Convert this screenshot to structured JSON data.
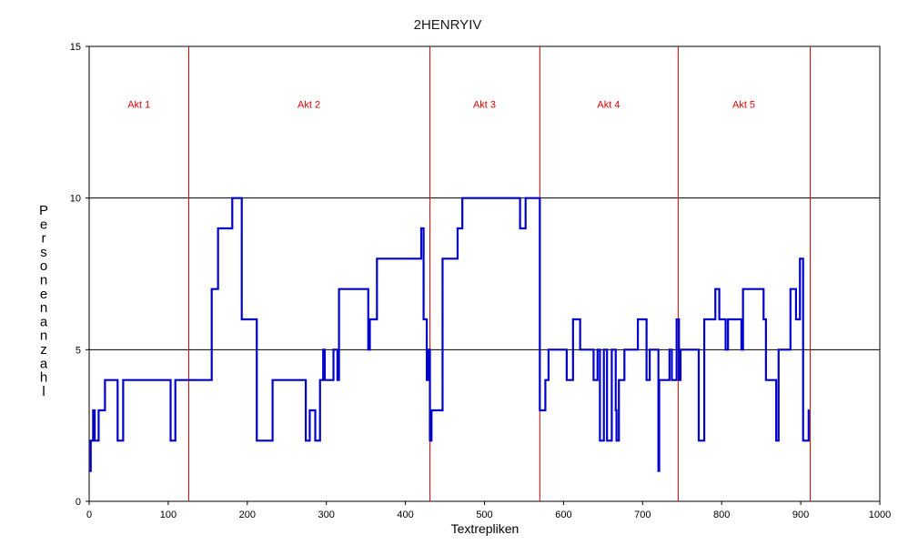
{
  "chart_data": {
    "type": "line",
    "title": "2HENRYIV",
    "xlabel": "Textrepliken",
    "ylabel": "Personenanzahl",
    "xlim": [
      0,
      1000
    ],
    "ylim": [
      0,
      15
    ],
    "xticks": [
      0,
      100,
      200,
      300,
      400,
      500,
      600,
      700,
      800,
      900,
      1000
    ],
    "yticks": [
      0,
      5,
      10,
      15
    ],
    "gridlines_y": [
      5,
      10
    ],
    "colors": {
      "series": "#0000cc",
      "act_divider": "#e00000",
      "act_label": "#e00000",
      "grid": "#000000"
    },
    "act_dividers": [
      126,
      431,
      570,
      745,
      912
    ],
    "acts": [
      {
        "label": "Akt 1",
        "x": 63
      },
      {
        "label": "Akt 2",
        "x": 278
      },
      {
        "label": "Akt 3",
        "x": 500
      },
      {
        "label": "Akt 4",
        "x": 657
      },
      {
        "label": "Akt 5",
        "x": 828
      }
    ],
    "act_label_y": 13.1,
    "series": [
      {
        "steps": [
          [
            0,
            1
          ],
          [
            2,
            2
          ],
          [
            5,
            3
          ],
          [
            7,
            2
          ],
          [
            12,
            3
          ],
          [
            20,
            4
          ],
          [
            36,
            2
          ],
          [
            43,
            4
          ],
          [
            103,
            2
          ],
          [
            109,
            4
          ],
          [
            155,
            7
          ],
          [
            163,
            9
          ],
          [
            181,
            10
          ],
          [
            193,
            6
          ],
          [
            212,
            2
          ],
          [
            232,
            4
          ],
          [
            274,
            2
          ],
          [
            279,
            3
          ],
          [
            286,
            2
          ],
          [
            292,
            4
          ],
          [
            296,
            5
          ],
          [
            298,
            4
          ],
          [
            309,
            5
          ],
          [
            314,
            4
          ],
          [
            316,
            7
          ],
          [
            353,
            5
          ],
          [
            355,
            6
          ],
          [
            364,
            8
          ],
          [
            420,
            9
          ],
          [
            423,
            6
          ],
          [
            427,
            4
          ],
          [
            429,
            5
          ],
          [
            431,
            2
          ],
          [
            433,
            3
          ],
          [
            447,
            8
          ],
          [
            466,
            9
          ],
          [
            472,
            10
          ],
          [
            545,
            9
          ],
          [
            552,
            10
          ],
          [
            570,
            3
          ],
          [
            577,
            4
          ],
          [
            581,
            5
          ],
          [
            604,
            4
          ],
          [
            612,
            6
          ],
          [
            621,
            5
          ],
          [
            638,
            4
          ],
          [
            643,
            5
          ],
          [
            646,
            2
          ],
          [
            651,
            5
          ],
          [
            655,
            2
          ],
          [
            661,
            5
          ],
          [
            666,
            3
          ],
          [
            667,
            2
          ],
          [
            670,
            4
          ],
          [
            675,
            4
          ],
          [
            677,
            5
          ],
          [
            694,
            6
          ],
          [
            705,
            4
          ],
          [
            709,
            5
          ],
          [
            720,
            1
          ],
          [
            721,
            4
          ],
          [
            734,
            5
          ],
          [
            737,
            4
          ],
          [
            743,
            6
          ],
          [
            746,
            4
          ],
          [
            748,
            5
          ],
          [
            771,
            2
          ],
          [
            778,
            6
          ],
          [
            792,
            7
          ],
          [
            797,
            6
          ],
          [
            805,
            5
          ],
          [
            808,
            6
          ],
          [
            825,
            5
          ],
          [
            827,
            7
          ],
          [
            853,
            6
          ],
          [
            856,
            4
          ],
          [
            869,
            2
          ],
          [
            872,
            5
          ],
          [
            887,
            7
          ],
          [
            894,
            6
          ],
          [
            899,
            8
          ],
          [
            903,
            2
          ],
          [
            910,
            3
          ]
        ],
        "x_end": 911
      }
    ]
  }
}
